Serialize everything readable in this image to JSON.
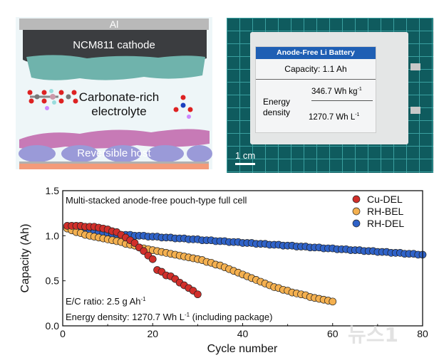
{
  "illustration": {
    "al_label": "Al",
    "cathode_label": "NCM811 cathode",
    "electrolyte_label_line1": "Carbonate-rich",
    "electrolyte_label_line2": "electrolyte",
    "host_label": "Reversible host"
  },
  "photo": {
    "label_header": "Anode-Free Li Battery",
    "capacity": "Capacity:  1.1 Ah",
    "energy_label_line1": "Energy",
    "energy_label_line2": "density",
    "gravimetric": "346.7 Wh kg",
    "gravimetric_sup": "-1",
    "volumetric": "1270.7 Wh L",
    "volumetric_sup": "-1",
    "scale_bar": "1 cm",
    "header_color": "#1f5fb4",
    "mat_color": "#0f5b5e"
  },
  "watermark": "뉴스1",
  "chart_data": {
    "type": "scatter",
    "title": "Multi-stacked anode-free pouch-type full cell",
    "xlabel": "Cycle number",
    "ylabel": "Capacity (Ah)",
    "xlim": [
      0,
      80
    ],
    "ylim": [
      0,
      1.5
    ],
    "xticks": [
      "0",
      "20",
      "40",
      "60",
      "80"
    ],
    "yticks": [
      "0.0",
      "0.5",
      "1.0",
      "1.5"
    ],
    "grid": false,
    "legend_position": "top-right",
    "annotation_line1": "E/C ratio: 2.5 g Ah",
    "annotation_line1_sup": "-1",
    "annotation_line2_a": "Energy density: 1270.7 Wh L",
    "annotation_line2_sup": "-1",
    "annotation_line2_b": " (including package)",
    "series": [
      {
        "name": "Cu-DEL",
        "color": "#d12f2a",
        "values": [
          1.11,
          1.11,
          1.11,
          1.11,
          1.1,
          1.1,
          1.1,
          1.09,
          1.08,
          1.07,
          1.05,
          1.04,
          1.01,
          0.98,
          0.95,
          0.92,
          0.87,
          0.83,
          0.78,
          0.74,
          0.62,
          0.6,
          0.56,
          0.55,
          0.52,
          0.48,
          0.45,
          0.42,
          0.39,
          0.35
        ]
      },
      {
        "name": "RH-BEL",
        "color": "#f4b04f",
        "values": [
          1.08,
          1.06,
          1.04,
          1.03,
          1.01,
          1.0,
          0.99,
          0.98,
          0.97,
          0.96,
          0.95,
          0.94,
          0.93,
          0.91,
          0.9,
          0.89,
          0.87,
          0.86,
          0.85,
          0.84,
          0.83,
          0.82,
          0.81,
          0.8,
          0.79,
          0.78,
          0.77,
          0.76,
          0.75,
          0.74,
          0.73,
          0.71,
          0.7,
          0.68,
          0.67,
          0.65,
          0.63,
          0.61,
          0.59,
          0.57,
          0.55,
          0.53,
          0.51,
          0.49,
          0.47,
          0.45,
          0.43,
          0.42,
          0.4,
          0.39,
          0.37,
          0.36,
          0.35,
          0.34,
          0.32,
          0.31,
          0.3,
          0.29,
          0.28,
          0.27
        ]
      },
      {
        "name": "RH-DEL",
        "color": "#2f62c8",
        "values": [
          1.09,
          1.08,
          1.07,
          1.06,
          1.05,
          1.045,
          1.04,
          1.035,
          1.03,
          1.025,
          1.02,
          1.02,
          1.01,
          1.01,
          1.01,
          1.0,
          1.0,
          1.0,
          0.99,
          0.99,
          0.99,
          0.98,
          0.98,
          0.98,
          0.97,
          0.97,
          0.97,
          0.96,
          0.96,
          0.96,
          0.95,
          0.95,
          0.95,
          0.94,
          0.94,
          0.94,
          0.93,
          0.93,
          0.93,
          0.92,
          0.92,
          0.92,
          0.91,
          0.91,
          0.91,
          0.9,
          0.9,
          0.9,
          0.89,
          0.89,
          0.89,
          0.88,
          0.88,
          0.88,
          0.87,
          0.87,
          0.87,
          0.86,
          0.86,
          0.86,
          0.85,
          0.85,
          0.85,
          0.84,
          0.84,
          0.84,
          0.83,
          0.83,
          0.83,
          0.82,
          0.82,
          0.82,
          0.81,
          0.81,
          0.81,
          0.8,
          0.8,
          0.8,
          0.79,
          0.79
        ]
      }
    ]
  }
}
